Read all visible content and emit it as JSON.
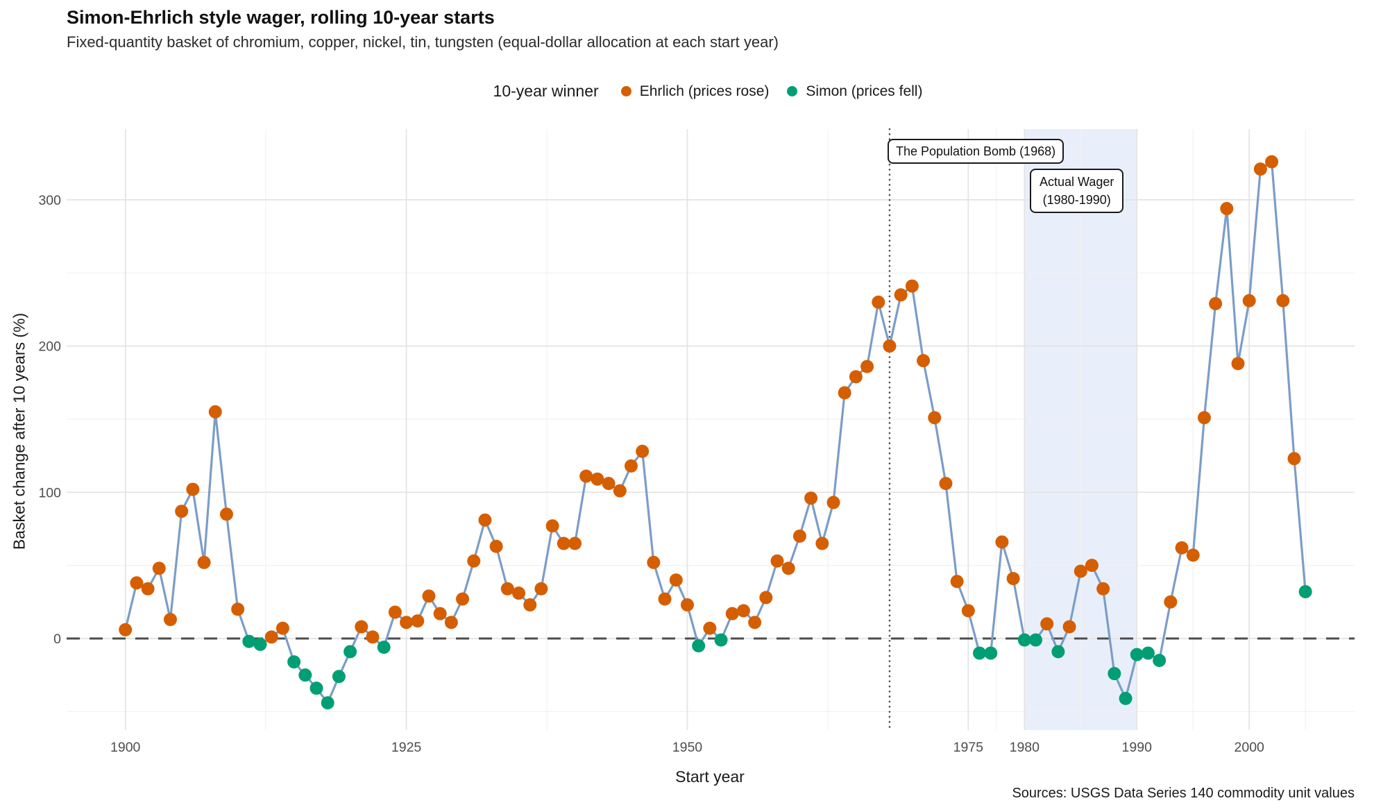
{
  "title": "Simon-Ehrlich style wager, rolling 10-year starts",
  "subtitle": "Fixed-quantity basket of chromium, copper, nickel, tin, tungsten (equal-dollar allocation at each start year)",
  "legend": {
    "title": "10-year winner",
    "items": [
      {
        "key": "E",
        "label": "Ehrlich (prices rose)",
        "color": "#D55E00"
      },
      {
        "key": "S",
        "label": "Simon (prices fell)",
        "color": "#009E73"
      }
    ]
  },
  "annotations": {
    "population_bomb": {
      "label": "The Population Bomb (1968)",
      "year": 1968
    },
    "actual_wager": {
      "line1": "Actual Wager",
      "line2": "(1980-1990)",
      "start": 1980,
      "end": 1990
    }
  },
  "axes": {
    "x_label": "Start year",
    "y_label": "Basket change after 10 years (%)",
    "x_ticks": [
      1900,
      1925,
      1950,
      1975,
      1980,
      1990,
      2000
    ],
    "y_ticks": [
      0,
      100,
      200,
      300
    ]
  },
  "source": "Sources: USGS Data Series 140 commodity unit values",
  "chart_data": {
    "type": "line",
    "title": "Simon-Ehrlich style wager, rolling 10-year starts",
    "xlabel": "Start year",
    "ylabel": "Basket change after 10 years (%)",
    "xlim": [
      1894.75,
      2010.25
    ],
    "ylim": [
      -62.5,
      348
    ],
    "grid": true,
    "x_minor": [
      1912.5,
      1937.5,
      1962.5,
      1977.5,
      1985,
      1995,
      2005
    ],
    "y_minor": [
      -50,
      50,
      150,
      250
    ],
    "zero_line_y": 0,
    "vline_year": 1968,
    "band": [
      1980,
      1990
    ],
    "colors": {
      "Ehrlich": "#D55E00",
      "Simon": "#009E73",
      "line": "#7B9DC8",
      "band": "rgba(150,180,230,0.21)"
    },
    "winner_legend": {
      "E": "Ehrlich (prices rose)",
      "S": "Simon (prices fell)"
    },
    "years": [
      1900,
      1901,
      1902,
      1903,
      1904,
      1905,
      1906,
      1907,
      1908,
      1909,
      1910,
      1911,
      1912,
      1913,
      1914,
      1915,
      1916,
      1917,
      1918,
      1919,
      1920,
      1921,
      1922,
      1923,
      1924,
      1925,
      1926,
      1927,
      1928,
      1929,
      1930,
      1931,
      1932,
      1933,
      1934,
      1935,
      1936,
      1937,
      1938,
      1939,
      1940,
      1941,
      1942,
      1943,
      1944,
      1945,
      1946,
      1947,
      1948,
      1949,
      1950,
      1951,
      1952,
      1953,
      1954,
      1955,
      1956,
      1957,
      1958,
      1959,
      1960,
      1961,
      1962,
      1963,
      1964,
      1965,
      1966,
      1967,
      1968,
      1969,
      1970,
      1971,
      1972,
      1973,
      1974,
      1975,
      1976,
      1977,
      1978,
      1979,
      1980,
      1981,
      1982,
      1983,
      1984,
      1985,
      1986,
      1987,
      1988,
      1989,
      1990,
      1991,
      1992,
      1993,
      1994,
      1995,
      1996,
      1997,
      1998,
      1999,
      2000,
      2001,
      2002,
      2003,
      2004,
      2005
    ],
    "values": [
      6,
      38,
      34,
      48,
      13,
      87,
      102,
      52,
      155,
      85,
      20,
      -2,
      -4,
      1,
      7,
      -16,
      -25,
      -34,
      -44,
      -26,
      -9,
      8,
      1,
      -6,
      18,
      11,
      12,
      29,
      17,
      11,
      27,
      53,
      81,
      63,
      34,
      31,
      23,
      34,
      77,
      65,
      65,
      111,
      109,
      106,
      101,
      118,
      128,
      52,
      27,
      40,
      23,
      -5,
      7,
      -1,
      17,
      19,
      11,
      28,
      53,
      48,
      70,
      96,
      65,
      93,
      168,
      179,
      186,
      230,
      200,
      235,
      241,
      190,
      151,
      106,
      39,
      19,
      -10,
      -10,
      66,
      41,
      -1,
      -1,
      10,
      -9,
      8,
      46,
      50,
      34,
      -24,
      -41,
      -11,
      -10,
      -15,
      25,
      62,
      57,
      151,
      229,
      294,
      188,
      231,
      321,
      326,
      231,
      123,
      32
    ],
    "winners": "EEEEEEEEEEESSEESSSSSSEESEEEEEEEEEEEEEEEEEEEEEEEEEEESESEEEEEEEEEEEEEEEEEEEEEESSEESSESEEEESSSSSEEEEEEEEEEEE"
  }
}
